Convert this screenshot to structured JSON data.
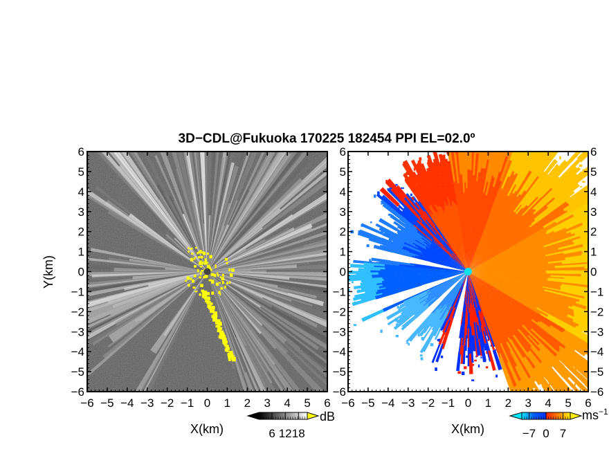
{
  "title": "3D−CDL@Fukuoka 170225 182454 PPI EL=02.0º",
  "chart_data": [
    {
      "type": "heatmap",
      "name": "",
      "xlabel": "X(km)",
      "ylabel": "Y(km)",
      "xlim": [
        -6,
        6
      ],
      "ylim": [
        -6,
        6
      ],
      "xticks": [
        "−6",
        "−5",
        "−4",
        "−3",
        "−2",
        "−1",
        "0",
        "1",
        "2",
        "3",
        "4",
        "5",
        "6"
      ],
      "yticks": [
        "6",
        "5",
        "4",
        "3",
        "2",
        "1",
        "0",
        "−1",
        "−2",
        "−3",
        "−4",
        "−5",
        "−6"
      ],
      "colorbar": {
        "unit": "dB",
        "ticks": [
          "6",
          "12",
          "18"
        ],
        "min": 0,
        "max": 22,
        "colors": [
          "#000000",
          "#ffffff"
        ],
        "extend_color": "#ffff00"
      },
      "site_marker": {
        "x": 0,
        "y": 0,
        "color": "#444444"
      }
    },
    {
      "type": "heatmap",
      "name": "",
      "xlabel": "X(km)",
      "ylabel": "",
      "xlim": [
        -6,
        6
      ],
      "ylim": [
        -6,
        6
      ],
      "xticks": [
        "−6",
        "−5",
        "−4",
        "−3",
        "−2",
        "−1",
        "0",
        "1",
        "2",
        "3",
        "4",
        "5",
        "6"
      ],
      "yticks": [
        "6",
        "5",
        "4",
        "3",
        "2",
        "1",
        "0",
        "−1",
        "−2",
        "−3",
        "−4",
        "−5",
        "−6"
      ],
      "colorbar": {
        "unit": "ms",
        "unit_exp": "−1",
        "ticks": [
          "−7",
          "0",
          "7"
        ],
        "min": -10,
        "max": 10,
        "colors": [
          "#00e5ff",
          "#0050ff",
          "#ff2000",
          "#ff8000",
          "#ffee00"
        ]
      },
      "site_marker": {
        "x": 0,
        "y": 0,
        "color": "#00e5ee"
      }
    }
  ]
}
